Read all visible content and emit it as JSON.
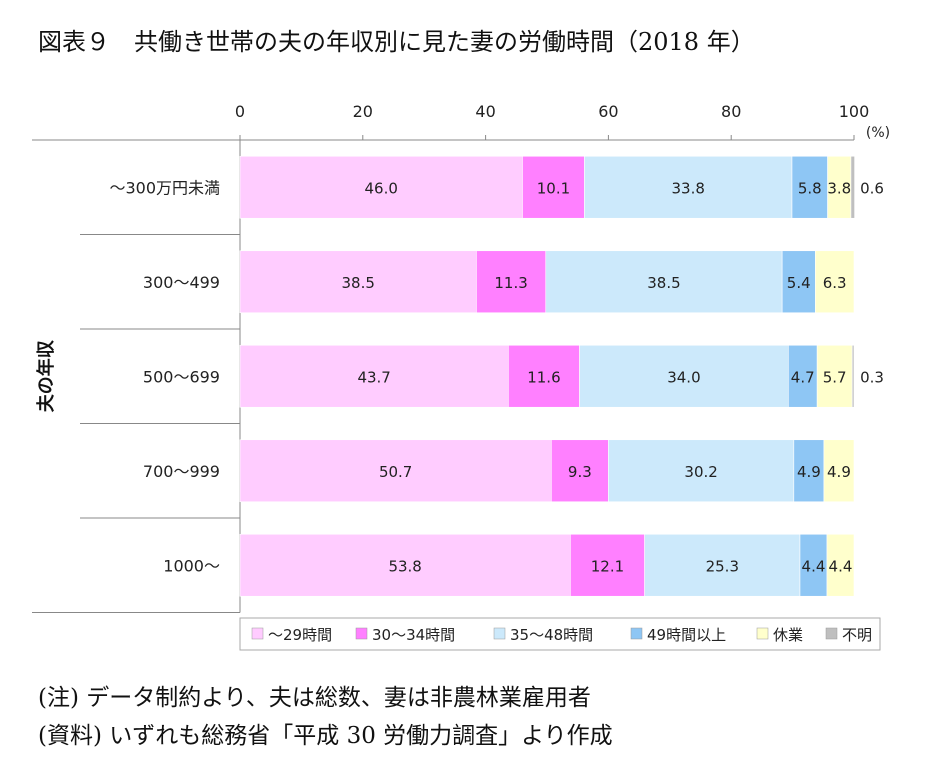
{
  "title": "図表９　共働き世帯の夫の年収別に見た妻の労働時間（2018 年）",
  "notes": [
    "(注) データ制約より、夫は総数、妻は非農林業雇用者",
    "(資料) いずれも総務省「平成 30 労働力調査」より作成"
  ],
  "chart_data": {
    "type": "bar",
    "orientation": "horizontal",
    "stacked": true,
    "title": "図表９　共働き世帯の夫の年収別に見た妻の労働時間（2018 年）",
    "xlabel": "",
    "ylabel": "夫の年収",
    "x_unit": "(%)",
    "xlim": [
      0,
      100
    ],
    "x_ticks": [
      0,
      20,
      40,
      60,
      80,
      100
    ],
    "grid": false,
    "legend_position": "bottom",
    "categories": [
      "～300万円未満",
      "300～499",
      "500～699",
      "700～999",
      "1000～"
    ],
    "series": [
      {
        "name": "～29時間",
        "color": "#ffccff",
        "values": [
          46.0,
          38.5,
          43.7,
          50.7,
          53.8
        ],
        "labels": [
          "46.0",
          "38.5",
          "43.7",
          "50.7",
          "53.8"
        ]
      },
      {
        "name": "30～34時間",
        "color": "#ff80ff",
        "values": [
          10.1,
          11.3,
          11.6,
          9.3,
          12.1
        ],
        "labels": [
          "10.1",
          "11.3",
          "11.6",
          "9.3",
          "12.1"
        ]
      },
      {
        "name": "35～48時間",
        "color": "#cce9fb",
        "values": [
          33.8,
          38.5,
          34.0,
          30.2,
          25.3
        ],
        "labels": [
          "33.8",
          "38.5",
          "34.0",
          "30.2",
          "25.3"
        ]
      },
      {
        "name": "49時間以上",
        "color": "#8ec6f4",
        "values": [
          5.8,
          5.4,
          4.7,
          4.9,
          4.4
        ],
        "labels": [
          "5.8",
          "5.4",
          "4.7",
          "4.9",
          "4.4"
        ]
      },
      {
        "name": "休業",
        "color": "#ffffcc",
        "values": [
          3.8,
          6.3,
          5.7,
          4.9,
          4.4
        ],
        "labels": [
          "3.8",
          "6.3",
          "5.7",
          "4.9",
          "4.4"
        ]
      },
      {
        "name": "不明",
        "color": "#bfbfbf",
        "values": [
          0.6,
          0,
          0.3,
          0,
          0
        ],
        "labels": [
          "0.6",
          "",
          "0.3",
          "",
          ""
        ]
      }
    ]
  }
}
